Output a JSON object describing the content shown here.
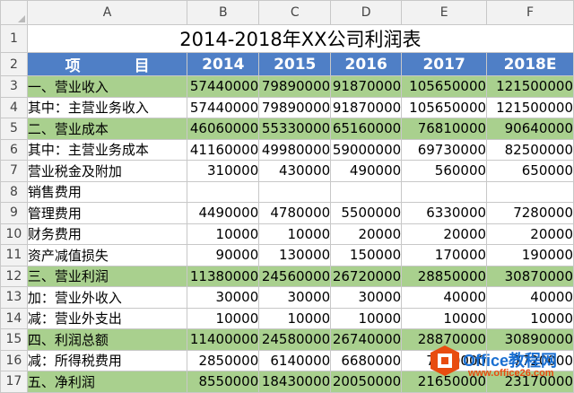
{
  "column_headers": [
    "A",
    "B",
    "C",
    "D",
    "E",
    "F"
  ],
  "row_numbers": [
    "1",
    "2",
    "3",
    "4",
    "5",
    "6",
    "7",
    "8",
    "9",
    "10",
    "11",
    "12",
    "13",
    "14",
    "15",
    "16",
    "17"
  ],
  "title": "2014-2018年XX公司利润表",
  "header": {
    "item_left": "项",
    "item_right": "目",
    "years": [
      "2014",
      "2015",
      "2016",
      "2017",
      "2018E"
    ]
  },
  "rows": [
    {
      "label": "一、营业收入",
      "values": [
        "57440000",
        "79890000",
        "91870000",
        "105650000",
        "121500000"
      ],
      "green": true,
      "sub": false
    },
    {
      "label": "其中：主营业务收入",
      "values": [
        "57440000",
        "79890000",
        "91870000",
        "105650000",
        "121500000"
      ],
      "green": false,
      "sub": true
    },
    {
      "label": "二、营业成本",
      "values": [
        "46060000",
        "55330000",
        "65160000",
        "76810000",
        "90640000"
      ],
      "green": true,
      "sub": false
    },
    {
      "label": "其中：主营业务成本",
      "values": [
        "41160000",
        "49980000",
        "59000000",
        "69730000",
        "82500000"
      ],
      "green": false,
      "sub": true
    },
    {
      "label": "营业税金及附加",
      "values": [
        "310000",
        "430000",
        "490000",
        "560000",
        "650000"
      ],
      "green": false,
      "sub": true
    },
    {
      "label": "销售费用",
      "values": [
        "",
        "",
        "",
        "",
        ""
      ],
      "green": false,
      "sub": true
    },
    {
      "label": "管理费用",
      "values": [
        "4490000",
        "4780000",
        "5500000",
        "6330000",
        "7280000"
      ],
      "green": false,
      "sub": true
    },
    {
      "label": "财务费用",
      "values": [
        "10000",
        "10000",
        "20000",
        "20000",
        "20000"
      ],
      "green": false,
      "sub": true
    },
    {
      "label": "资产减值损失",
      "values": [
        "90000",
        "130000",
        "150000",
        "170000",
        "190000"
      ],
      "green": false,
      "sub": true
    },
    {
      "label": "三、营业利润",
      "values": [
        "11380000",
        "24560000",
        "26720000",
        "28850000",
        "30870000"
      ],
      "green": true,
      "sub": false
    },
    {
      "label": "加：营业外收入",
      "values": [
        "30000",
        "30000",
        "30000",
        "40000",
        "40000"
      ],
      "green": false,
      "sub": true
    },
    {
      "label": "减：营业外支出",
      "values": [
        "10000",
        "10000",
        "10000",
        "10000",
        "10000"
      ],
      "green": false,
      "sub": true
    },
    {
      "label": "四、利润总额",
      "values": [
        "11400000",
        "24580000",
        "26740000",
        "28870000",
        "30890000"
      ],
      "green": true,
      "sub": false
    },
    {
      "label": "减：所得税费用",
      "values": [
        "2850000",
        "6140000",
        "6680000",
        "7220000",
        "7720000"
      ],
      "green": false,
      "sub": true
    },
    {
      "label": "五、净利润",
      "values": [
        "8550000",
        "18430000",
        "20050000",
        "21650000",
        "23170000"
      ],
      "green": true,
      "sub": false
    }
  ],
  "watermark": {
    "text": "Office教程网",
    "url": "www.office26.com"
  },
  "colors": {
    "header_blue": "#4f7fc6",
    "row_green": "#a9d08e",
    "watermark_orange": "#e84c10",
    "watermark_blue": "#1a6fd1"
  }
}
